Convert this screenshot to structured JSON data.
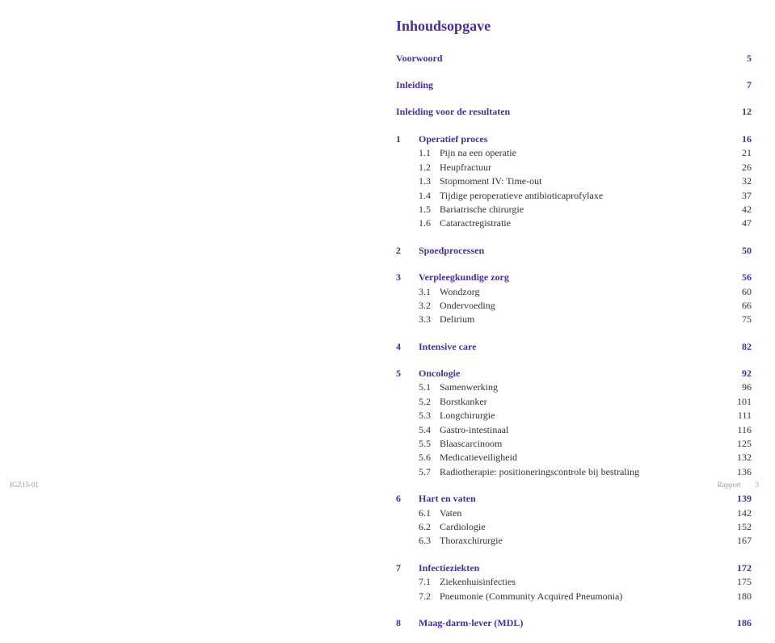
{
  "leftFooter": "IGZ15-01",
  "title": "Inhoudsopgave",
  "frontMatter": [
    {
      "title": "Voorwoord",
      "page": "5"
    },
    {
      "title": "Inleiding",
      "page": "7"
    },
    {
      "title": "Inleiding voor de resultaten",
      "page": "12"
    }
  ],
  "sections": [
    {
      "num": "1",
      "title": "Operatief proces",
      "page": "16",
      "subs": [
        {
          "num": "1.1",
          "title": "Pijn na een operatie",
          "page": "21"
        },
        {
          "num": "1.2",
          "title": "Heupfractuur",
          "page": "26"
        },
        {
          "num": "1.3",
          "title": "Stopmoment IV: Time-out",
          "page": "32"
        },
        {
          "num": "1.4",
          "title": "Tijdige peroperatieve antibioticaprofylaxe",
          "page": "37"
        },
        {
          "num": "1.5",
          "title": "Bariatrische chirurgie",
          "page": "42"
        },
        {
          "num": "1.6",
          "title": "Cataractregistratie",
          "page": "47"
        }
      ]
    },
    {
      "num": "2",
      "title": "Spoedprocessen",
      "page": "50",
      "subs": []
    },
    {
      "num": "3",
      "title": "Verpleegkundige zorg",
      "page": "56",
      "subs": [
        {
          "num": "3.1",
          "title": "Wondzorg",
          "page": "60"
        },
        {
          "num": "3.2",
          "title": "Ondervoeding",
          "page": "66"
        },
        {
          "num": "3.3",
          "title": "Delirium",
          "page": "75"
        }
      ]
    },
    {
      "num": "4",
      "title": "Intensive care",
      "page": "82",
      "subs": []
    },
    {
      "num": "5",
      "title": "Oncologie",
      "page": "92",
      "subs": [
        {
          "num": "5.1",
          "title": "Samenwerking",
          "page": "96"
        },
        {
          "num": "5.2",
          "title": "Borstkanker",
          "page": "101"
        },
        {
          "num": "5.3",
          "title": "Longchirurgie",
          "page": "111"
        },
        {
          "num": "5.4",
          "title": "Gastro-intestinaal",
          "page": "116"
        },
        {
          "num": "5.5",
          "title": "Blaascarcinoom",
          "page": "125"
        },
        {
          "num": "5.6",
          "title": "Medicatieveiligheid",
          "page": "132"
        },
        {
          "num": "5.7",
          "title": "Radiotherapie: positioneringscontrole bij bestraling",
          "page": "136"
        }
      ]
    },
    {
      "num": "6",
      "title": "Hart en vaten",
      "page": "139",
      "subs": [
        {
          "num": "6.1",
          "title": "Vaten",
          "page": "142"
        },
        {
          "num": "6.2",
          "title": "Cardiologie",
          "page": "152"
        },
        {
          "num": "6.3",
          "title": "Thoraxchirurgie",
          "page": "167"
        }
      ]
    },
    {
      "num": "7",
      "title": "Infectieziekten",
      "page": "172",
      "subs": [
        {
          "num": "7.1",
          "title": "Ziekenhuisinfecties",
          "page": "175"
        },
        {
          "num": "7.2",
          "title": "Pneumonie (Community Acquired Pneumonia)",
          "page": "180"
        }
      ]
    },
    {
      "num": "8",
      "title": "Maag-darm-lever (MDL)",
      "page": "186",
      "subs": []
    }
  ],
  "rightFooterLabel": "Rapport",
  "rightFooterPage": "3",
  "colors": {
    "heading": "#4b2f91",
    "body": "#333333",
    "footer": "#999999",
    "background": "#ffffff"
  }
}
